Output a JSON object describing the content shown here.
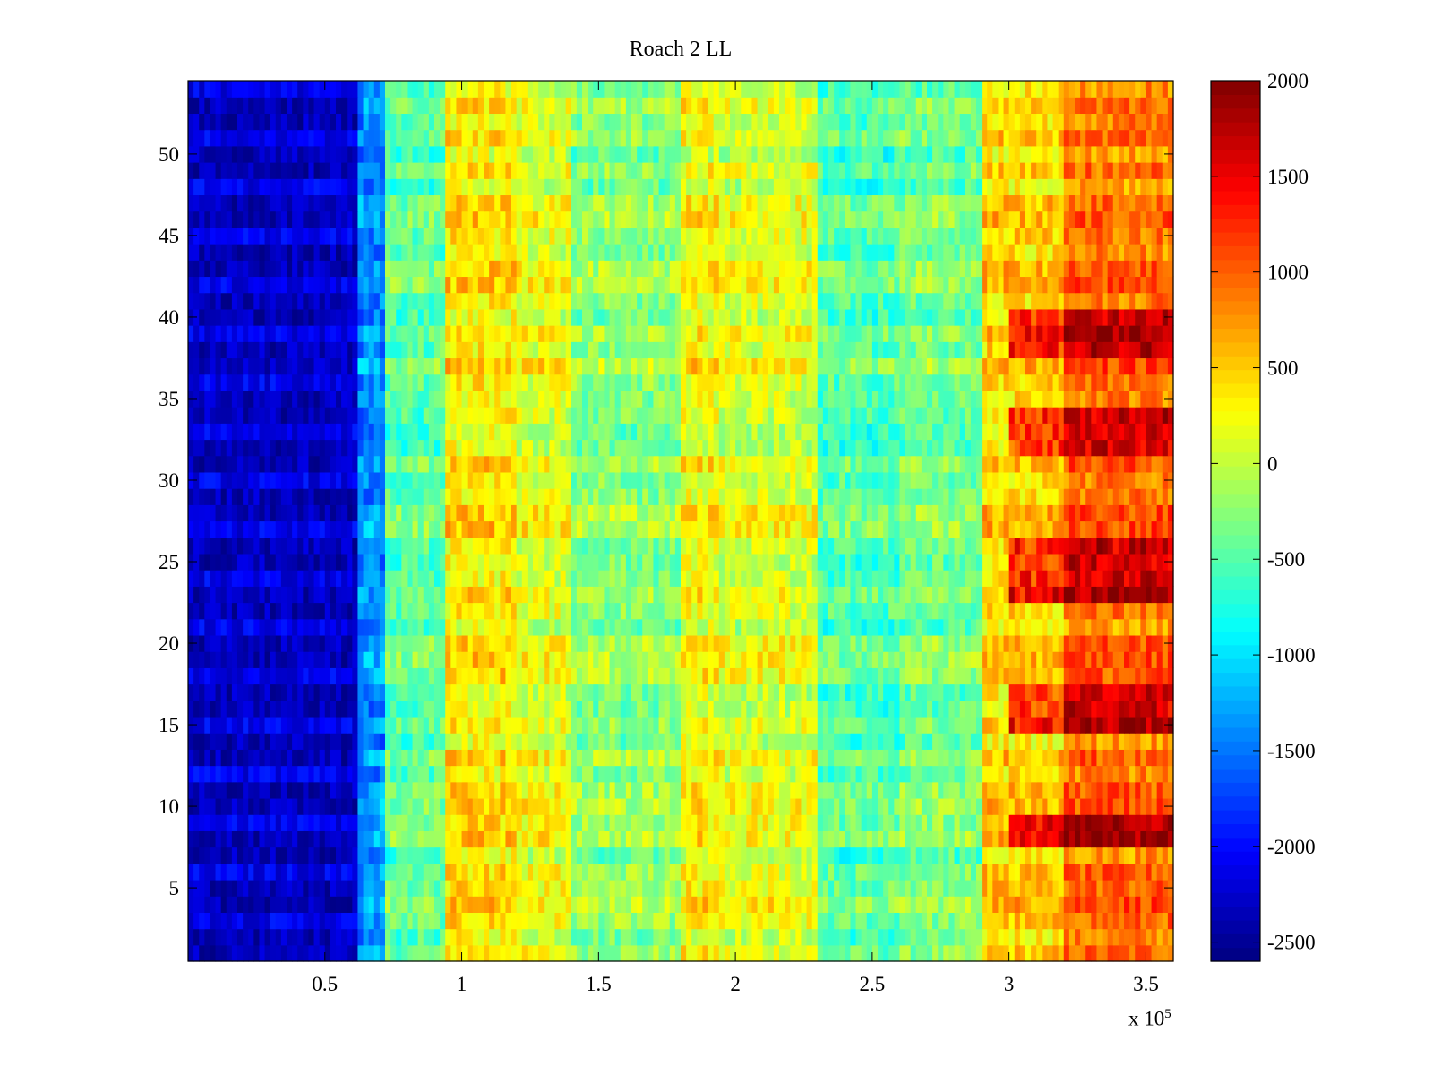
{
  "chart_data": {
    "type": "heatmap",
    "title": "Roach 2 LL",
    "xlabel": "",
    "ylabel": "",
    "x_multiplier_prefix": "x 10",
    "x_multiplier_exponent": "5",
    "xlim": [
      0,
      3.6
    ],
    "ylim": [
      0.5,
      54.5
    ],
    "xticks": [
      {
        "value": 0.5,
        "label": "0.5"
      },
      {
        "value": 1,
        "label": "1"
      },
      {
        "value": 1.5,
        "label": "1.5"
      },
      {
        "value": 2,
        "label": "2"
      },
      {
        "value": 2.5,
        "label": "2.5"
      },
      {
        "value": 3,
        "label": "3"
      },
      {
        "value": 3.5,
        "label": "3.5"
      }
    ],
    "yticks": [
      {
        "value": 5,
        "label": "5"
      },
      {
        "value": 10,
        "label": "10"
      },
      {
        "value": 15,
        "label": "15"
      },
      {
        "value": 20,
        "label": "20"
      },
      {
        "value": 25,
        "label": "25"
      },
      {
        "value": 30,
        "label": "30"
      },
      {
        "value": 35,
        "label": "35"
      },
      {
        "value": 40,
        "label": "40"
      },
      {
        "value": 45,
        "label": "45"
      },
      {
        "value": 50,
        "label": "50"
      }
    ],
    "colorbar": {
      "colormap": "jet",
      "range": [
        -2600,
        2000
      ],
      "ticks": [
        {
          "value": 2000,
          "label": "2000"
        },
        {
          "value": 1500,
          "label": "1500"
        },
        {
          "value": 1000,
          "label": "1000"
        },
        {
          "value": 500,
          "label": "500"
        },
        {
          "value": 0,
          "label": "0"
        },
        {
          "value": -500,
          "label": "-500"
        },
        {
          "value": -1000,
          "label": "-1000"
        },
        {
          "value": -1500,
          "label": "-1500"
        },
        {
          "value": -2000,
          "label": "-2000"
        },
        {
          "value": -2500,
          "label": "-2500"
        }
      ]
    },
    "rows": 54,
    "approx_segments_x_1e5": [
      0,
      0.62,
      0.72,
      0.95,
      1.2,
      1.4,
      1.8,
      1.95,
      2.3,
      2.6,
      2.9,
      3.2,
      3.6
    ],
    "approx_base_values": [
      -2350,
      -1400,
      -450,
      350,
      150,
      -250,
      250,
      100,
      -500,
      -350,
      450,
      900
    ],
    "hot_rows_right": [
      8,
      9,
      15,
      16,
      17,
      23,
      24,
      25,
      26,
      32,
      33,
      34,
      38,
      39,
      40
    ],
    "grid": false
  }
}
